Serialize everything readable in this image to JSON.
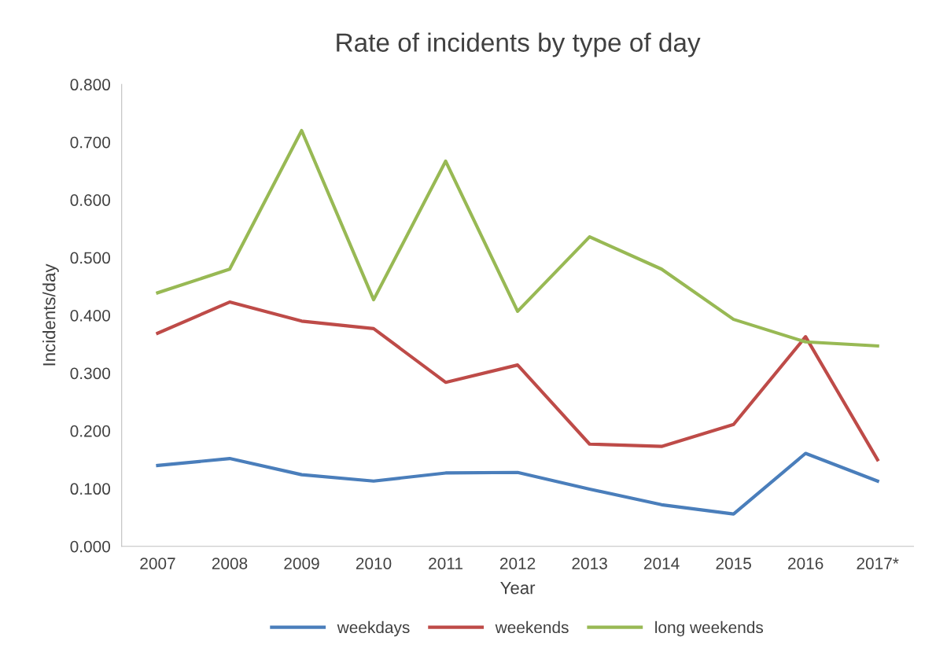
{
  "chart_data": {
    "type": "line",
    "title": "Rate of incidents by type of day",
    "xlabel": "Year",
    "ylabel": "Incidents/day",
    "categories": [
      "2007",
      "2008",
      "2009",
      "2010",
      "2011",
      "2012",
      "2013",
      "2014",
      "2015",
      "2016",
      "2017*"
    ],
    "series": [
      {
        "name": "weekdays",
        "color": "#4a7ebb",
        "values": [
          0.14,
          0.152,
          0.124,
          0.113,
          0.127,
          0.128,
          0.099,
          0.072,
          0.056,
          0.161,
          0.113
        ]
      },
      {
        "name": "weekends",
        "color": "#be4b48",
        "values": [
          0.369,
          0.423,
          0.39,
          0.377,
          0.284,
          0.314,
          0.177,
          0.173,
          0.211,
          0.363,
          0.15
        ]
      },
      {
        "name": "long weekends",
        "color": "#98b954",
        "values": [
          0.439,
          0.48,
          0.72,
          0.427,
          0.667,
          0.407,
          0.536,
          0.48,
          0.393,
          0.354,
          0.347
        ]
      }
    ],
    "ylim": [
      0,
      0.8
    ],
    "yticks": [
      {
        "value": 0,
        "label": "0.000"
      },
      {
        "value": 0.1,
        "label": "0.100"
      },
      {
        "value": 0.2,
        "label": "0.200"
      },
      {
        "value": 0.3,
        "label": "0.300"
      },
      {
        "value": 0.4,
        "label": "0.400"
      },
      {
        "value": 0.5,
        "label": "0.500"
      },
      {
        "value": 0.6,
        "label": "0.600"
      },
      {
        "value": 0.7,
        "label": "0.700"
      },
      {
        "value": 0.8,
        "label": "0.800"
      }
    ],
    "grid": false,
    "legend": "bottom",
    "marker": "none",
    "line_style": "solid"
  }
}
